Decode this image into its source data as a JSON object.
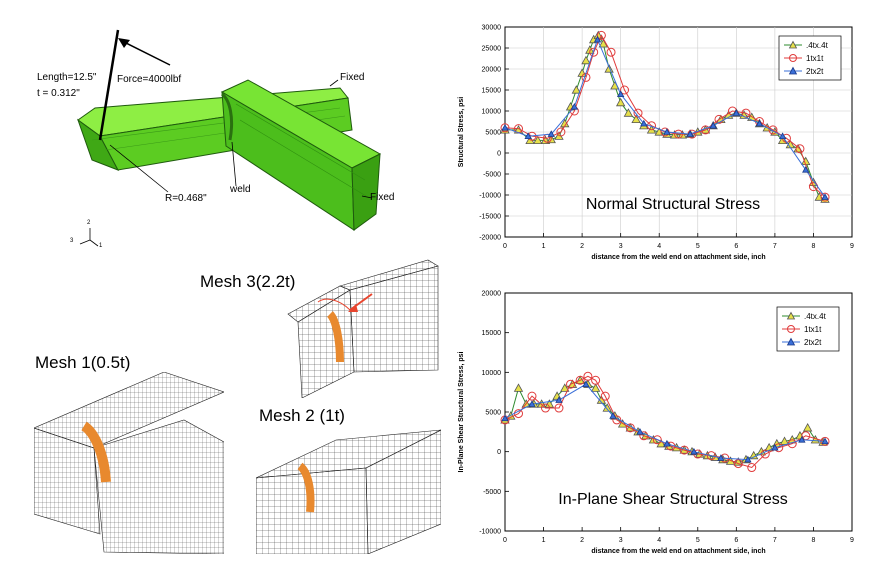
{
  "model": {
    "length_label": "Length=12.5\"",
    "t_label": "t = 0.312\"",
    "force_label": "Force=4000lbf",
    "fixed_top_label": "Fixed",
    "fixed_right_label": "Fixed",
    "radius_label": "R=0.468\"",
    "weld_label": "weld",
    "triad_labels": [
      "2",
      "3",
      "1"
    ]
  },
  "meshes": {
    "mesh1_label": "Mesh 1(0.5t)",
    "mesh2_label": "Mesh 2 (1t)",
    "mesh3_label": "Mesh 3(2.2t)"
  },
  "colors": {
    "model_green": "#66dd22",
    "weld_orange": "#e8892e",
    "arrow_red": "#e8452e",
    "series_a": "#2e8b2e",
    "series_b": "#e03b3b",
    "series_c": "#3a6fd8",
    "marker_fill_a": "#e6e04a",
    "marker_fill_c": "#3a6fd8"
  },
  "chart_data": [
    {
      "type": "line",
      "title": "Normal Structural Stress",
      "xlabel": "distance from the weld end on attachment side, inch",
      "ylabel": "Structural Stress, psi",
      "xlim": [
        0,
        9
      ],
      "ylim": [
        -20000,
        30000
      ],
      "xticks": [
        "0",
        "1",
        "2",
        "3",
        "4",
        "5",
        "6",
        "7",
        "8",
        "9"
      ],
      "yticks": [
        "30000",
        "25000",
        "20000",
        "15000",
        "10000",
        "5000",
        "0",
        "-5000",
        "-10000",
        "-15000",
        "-20000"
      ],
      "grid": true,
      "legend_position": "top-right",
      "series": [
        {
          "name": ".4tx.4t",
          "marker": "triangle",
          "x": [
            0,
            0.35,
            0.65,
            0.85,
            1.05,
            1.2,
            1.4,
            1.55,
            1.7,
            1.85,
            2.0,
            2.1,
            2.2,
            2.3,
            2.42,
            2.55,
            2.7,
            2.85,
            3.0,
            3.2,
            3.4,
            3.6,
            3.8,
            4.0,
            4.2,
            4.4,
            4.6,
            4.8,
            5.0,
            5.2,
            5.4,
            5.6,
            5.8,
            6.0,
            6.2,
            6.4,
            6.6,
            6.8,
            7.0,
            7.2,
            7.4,
            7.6,
            7.8,
            8.0,
            8.15,
            8.3
          ],
          "y": [
            5500,
            5500,
            3000,
            3000,
            3000,
            3200,
            4000,
            7000,
            11000,
            15000,
            19000,
            22000,
            24500,
            27000,
            28000,
            26000,
            20000,
            16000,
            12000,
            9500,
            8000,
            6500,
            5500,
            5000,
            4500,
            4300,
            4300,
            4500,
            5000,
            5500,
            6500,
            8000,
            9000,
            9500,
            9000,
            8500,
            7000,
            6000,
            5000,
            3000,
            2000,
            1000,
            -2000,
            -7000,
            -10500,
            -11000
          ]
        },
        {
          "name": "1tx1t",
          "marker": "circle",
          "x": [
            0,
            0.35,
            0.7,
            1.1,
            1.45,
            1.8,
            2.1,
            2.3,
            2.5,
            2.75,
            3.1,
            3.45,
            3.8,
            4.15,
            4.5,
            4.85,
            5.2,
            5.55,
            5.9,
            6.25,
            6.6,
            6.95,
            7.3,
            7.65,
            8.0,
            8.3
          ],
          "y": [
            6000,
            5800,
            4000,
            3500,
            5000,
            10000,
            18000,
            24000,
            28000,
            24000,
            15000,
            9500,
            6500,
            5000,
            4500,
            4500,
            5500,
            8000,
            10000,
            9500,
            7500,
            5500,
            3500,
            1000,
            -8000,
            -10500
          ]
        },
        {
          "name": "2tx2t",
          "marker": "triangle",
          "x": [
            0,
            0.6,
            1.2,
            1.8,
            2.4,
            3.0,
            3.6,
            4.2,
            4.8,
            5.4,
            6.0,
            6.6,
            7.2,
            7.8,
            8.3
          ],
          "y": [
            6000,
            4000,
            4500,
            11000,
            27000,
            14000,
            7000,
            5000,
            4500,
            6500,
            9500,
            7000,
            4000,
            -4000,
            -10500
          ]
        }
      ]
    },
    {
      "type": "line",
      "title": "In-Plane Shear Structural Stress",
      "xlabel": "distance from the weld end on attachment side, inch",
      "ylabel": "In-Plane Shear Structural Stress, psi",
      "xlim": [
        0,
        9
      ],
      "ylim": [
        -10000,
        20000
      ],
      "xticks": [
        "0",
        "1",
        "2",
        "3",
        "4",
        "5",
        "6",
        "7",
        "8",
        "9"
      ],
      "yticks": [
        "20000",
        "15000",
        "10000",
        "5000",
        "0",
        "-5000",
        "-10000"
      ],
      "grid": false,
      "legend_position": "top-right",
      "series": [
        {
          "name": ".4tx.4t",
          "marker": "triangle",
          "x": [
            0,
            0.15,
            0.35,
            0.55,
            0.75,
            0.95,
            1.15,
            1.35,
            1.55,
            1.75,
            1.95,
            2.15,
            2.35,
            2.5,
            2.65,
            2.85,
            3.05,
            3.25,
            3.45,
            3.65,
            3.85,
            4.05,
            4.25,
            4.45,
            4.65,
            4.85,
            5.05,
            5.25,
            5.45,
            5.65,
            5.85,
            6.05,
            6.25,
            6.45,
            6.65,
            6.85,
            7.05,
            7.25,
            7.45,
            7.65,
            7.85,
            8.05,
            8.25
          ],
          "y": [
            4000,
            4500,
            8000,
            6000,
            6000,
            6000,
            6000,
            7000,
            8000,
            8500,
            9000,
            8500,
            8000,
            6500,
            5500,
            4500,
            3500,
            3000,
            2500,
            2000,
            1500,
            1000,
            700,
            500,
            200,
            0,
            -300,
            -500,
            -700,
            -1000,
            -1200,
            -1300,
            -1000,
            -500,
            0,
            500,
            1000,
            1300,
            1500,
            2000,
            3000,
            1500,
            1200
          ]
        },
        {
          "name": "1tx1t",
          "marker": "circle",
          "x": [
            0,
            0.35,
            0.7,
            1.05,
            1.4,
            1.7,
            1.95,
            2.15,
            2.35,
            2.6,
            2.9,
            3.25,
            3.6,
            3.95,
            4.3,
            4.65,
            5.0,
            5.35,
            5.7,
            6.05,
            6.4,
            6.75,
            7.1,
            7.45,
            7.8,
            8.3
          ],
          "y": [
            4000,
            4800,
            7000,
            5500,
            5500,
            8500,
            9000,
            9500,
            9000,
            7000,
            4000,
            3000,
            2000,
            1500,
            700,
            200,
            -300,
            -500,
            -800,
            -1500,
            -2000,
            -300,
            500,
            1000,
            2000,
            1300
          ]
        },
        {
          "name": "2tx2t",
          "marker": "triangle",
          "x": [
            0,
            0.7,
            1.4,
            2.1,
            2.8,
            3.5,
            4.2,
            4.9,
            5.6,
            6.3,
            7.0,
            7.7,
            8.3
          ],
          "y": [
            4200,
            6000,
            6500,
            8500,
            4500,
            2500,
            1000,
            0,
            -800,
            -1000,
            500,
            1500,
            1300
          ]
        }
      ]
    }
  ]
}
